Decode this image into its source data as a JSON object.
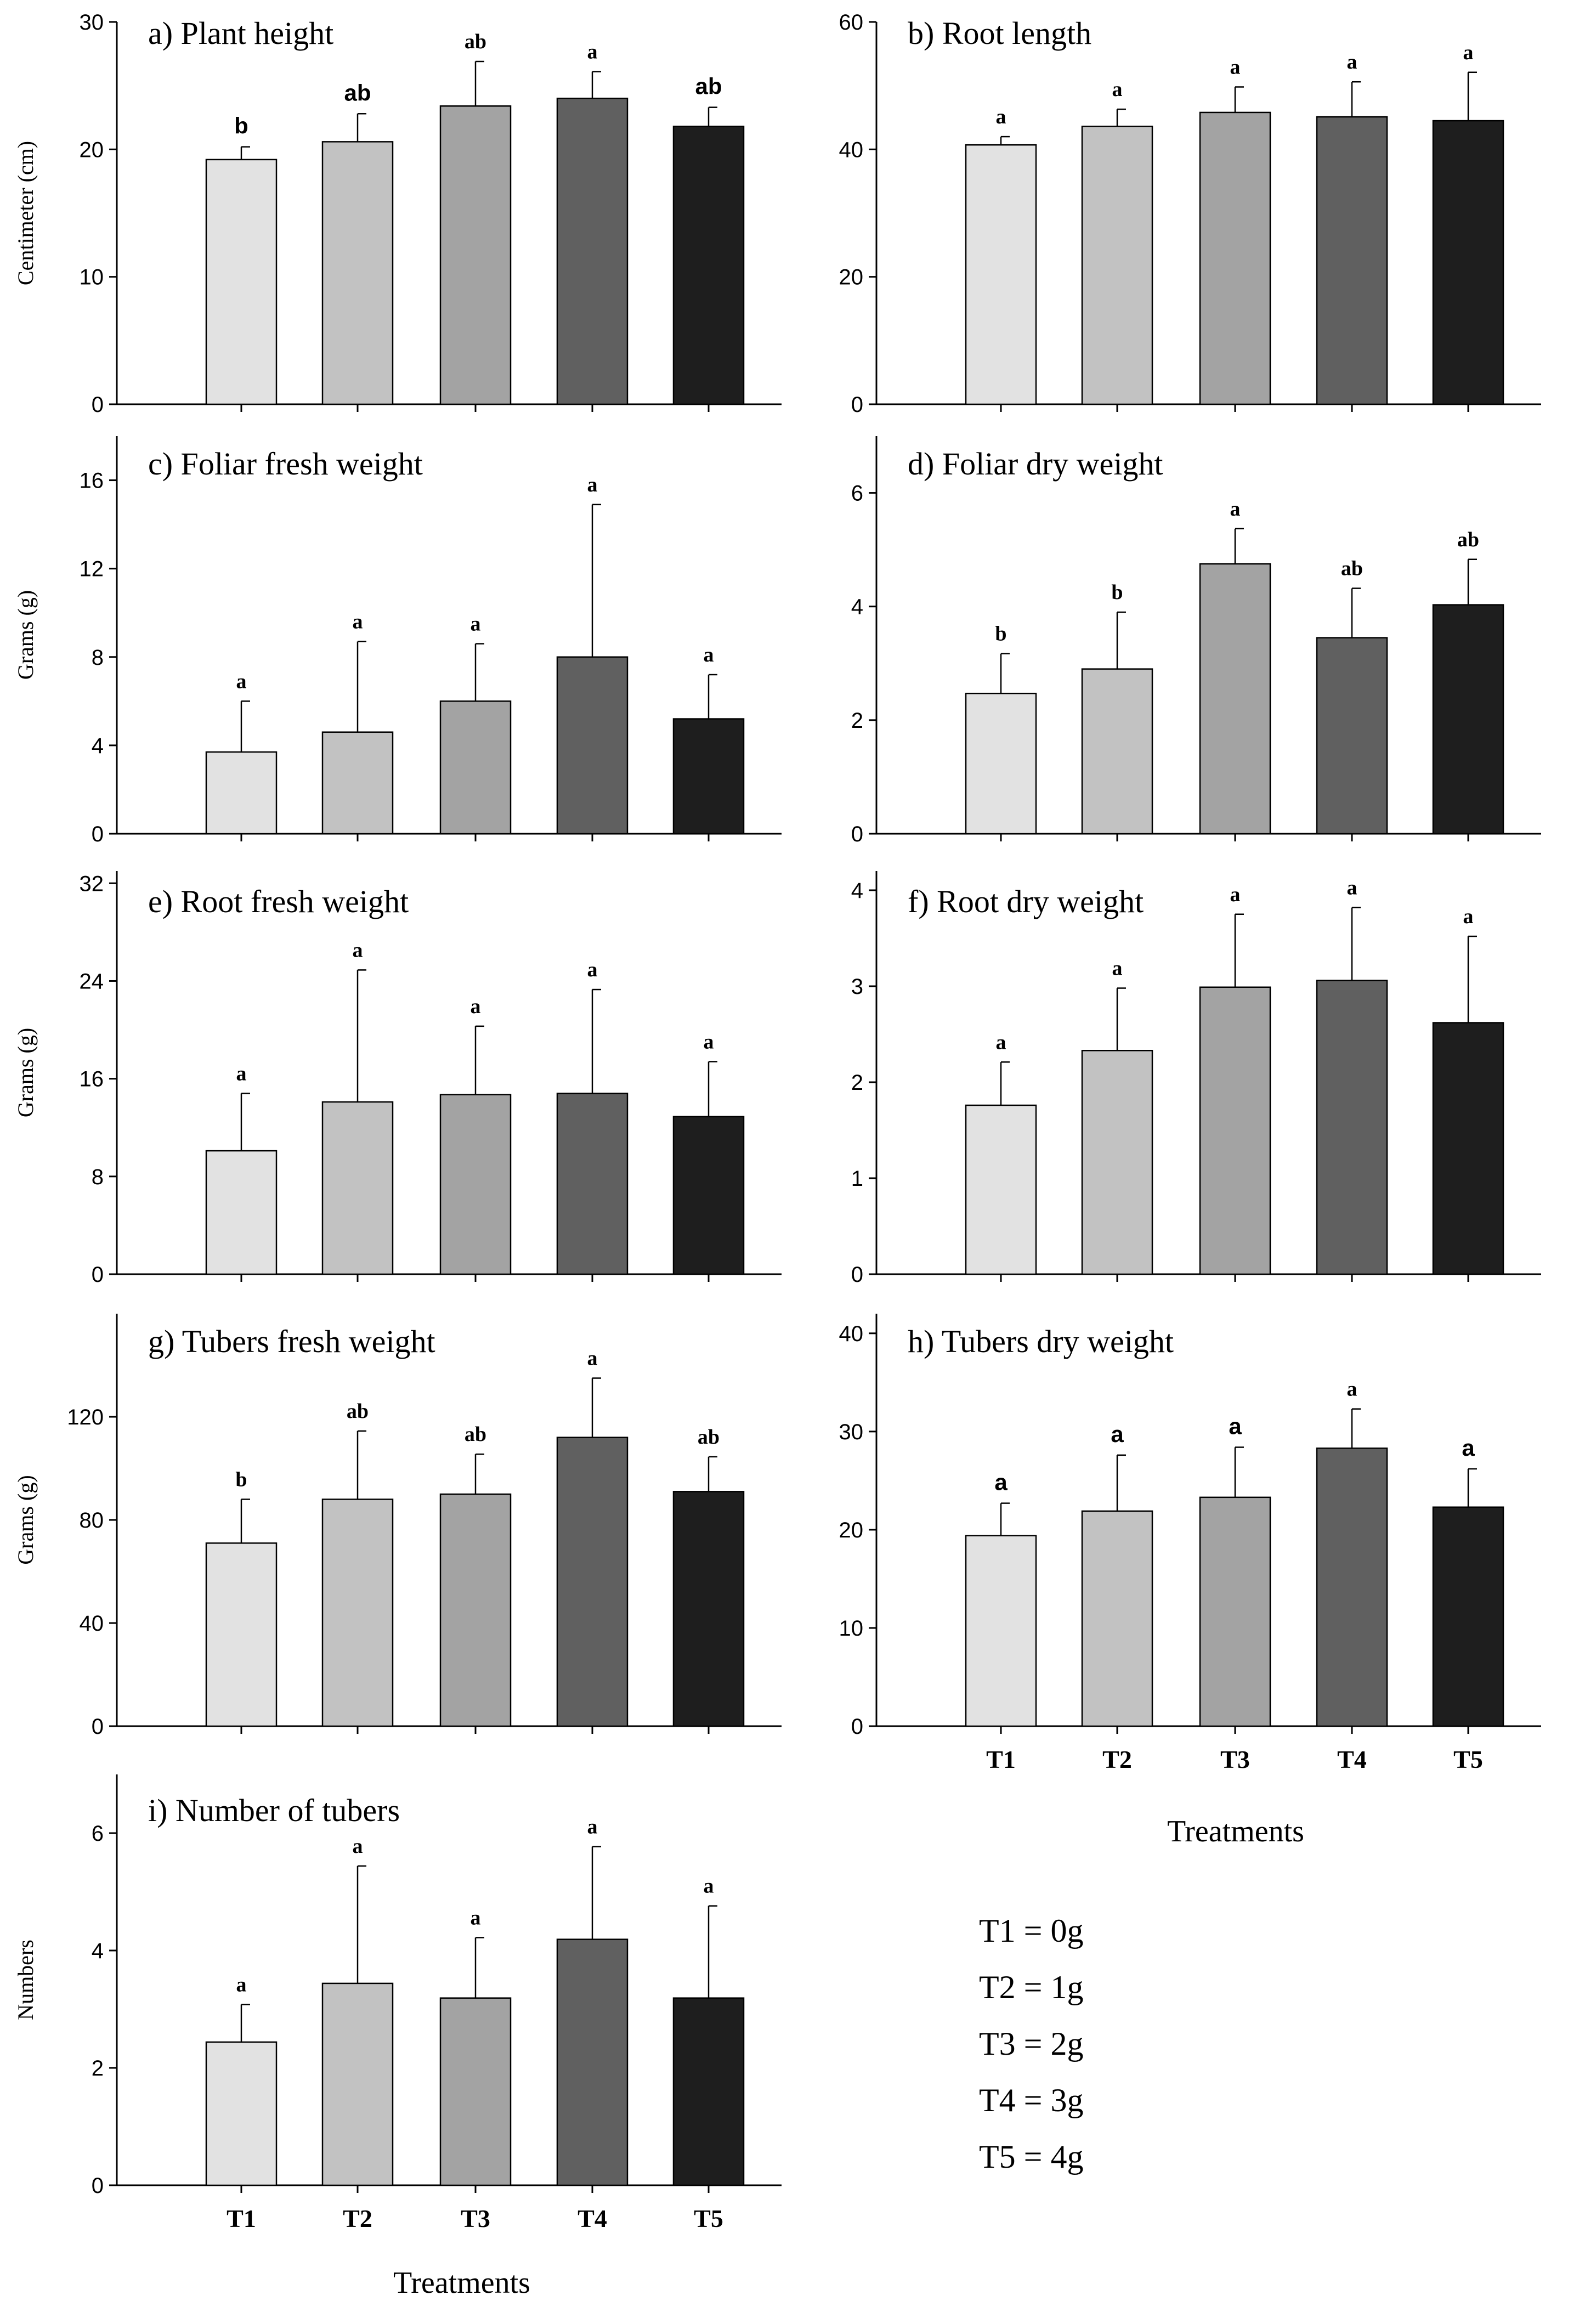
{
  "categories": [
    "T1",
    "T2",
    "T3",
    "T4",
    "T5"
  ],
  "bar_colors": [
    "#e2e2e2",
    "#c2c2c2",
    "#a3a3a3",
    "#606060",
    "#1e1e1e"
  ],
  "xlabel": "Treatments",
  "legend": [
    "T1 = 0g",
    "T2 = 1g",
    "T3 = 2g",
    "T4 = 3g",
    "T5 = 4g"
  ],
  "chart_data": [
    {
      "id": "a",
      "type": "bar",
      "title": "a) Plant height",
      "ylabel": "Centimeter (cm)",
      "ylim": [
        0,
        30
      ],
      "yticks": [
        0,
        10,
        20,
        30
      ],
      "categories": [
        "T1",
        "T2",
        "T3",
        "T4",
        "T5"
      ],
      "values": [
        19.2,
        20.6,
        23.4,
        24.0,
        21.8
      ],
      "errors": [
        1.0,
        2.2,
        3.5,
        2.1,
        1.5
      ],
      "significance": [
        "b",
        "ab",
        "ab",
        "a",
        "ab"
      ],
      "sig_style": [
        "sans",
        "sans",
        "serif",
        "serif",
        "sans"
      ]
    },
    {
      "id": "b",
      "type": "bar",
      "title": "b) Root length",
      "ylabel": "",
      "ylim": [
        0,
        60
      ],
      "yticks": [
        0,
        20,
        40,
        60
      ],
      "categories": [
        "T1",
        "T2",
        "T3",
        "T4",
        "T5"
      ],
      "values": [
        40.7,
        43.6,
        45.8,
        45.1,
        44.5
      ],
      "errors": [
        1.3,
        2.7,
        4.0,
        5.5,
        7.6
      ],
      "significance": [
        "a",
        "a",
        "a",
        "a",
        "a"
      ],
      "sig_style": [
        "serif",
        "serif",
        "serif",
        "serif",
        "serif"
      ]
    },
    {
      "id": "c",
      "type": "bar",
      "title": "c) Foliar fresh weight",
      "ylabel": "Grams (g)",
      "ylim": [
        0,
        18
      ],
      "yticks": [
        0,
        4,
        8,
        12,
        16
      ],
      "categories": [
        "T1",
        "T2",
        "T3",
        "T4",
        "T5"
      ],
      "values": [
        3.7,
        4.6,
        6.0,
        8.0,
        5.2
      ],
      "errors": [
        2.3,
        4.1,
        2.6,
        6.9,
        2.0
      ],
      "significance": [
        "a",
        "a",
        "a",
        "a",
        "a"
      ],
      "sig_style": [
        "serif",
        "serif",
        "serif",
        "serif",
        "serif"
      ]
    },
    {
      "id": "d",
      "type": "bar",
      "title": "d) Foliar dry weight",
      "ylabel": "",
      "ylim": [
        0,
        7
      ],
      "yticks": [
        0,
        2,
        4,
        6
      ],
      "categories": [
        "T1",
        "T2",
        "T3",
        "T4",
        "T5"
      ],
      "values": [
        2.47,
        2.9,
        4.75,
        3.45,
        4.03
      ],
      "errors": [
        0.7,
        1.0,
        0.62,
        0.87,
        0.8
      ],
      "significance": [
        "b",
        "b",
        "a",
        "ab",
        "ab"
      ],
      "sig_style": [
        "serif",
        "serif",
        "serif",
        "serif",
        "serif"
      ]
    },
    {
      "id": "e",
      "type": "bar",
      "title": "e) Root fresh weight",
      "ylabel": "Grams (g)",
      "ylim": [
        0,
        33
      ],
      "yticks": [
        0,
        8,
        16,
        24,
        32
      ],
      "categories": [
        "T1",
        "T2",
        "T3",
        "T4",
        "T5"
      ],
      "values": [
        10.1,
        14.1,
        14.7,
        14.8,
        12.9
      ],
      "errors": [
        4.7,
        10.8,
        5.6,
        8.5,
        4.5
      ],
      "significance": [
        "a",
        "a",
        "a",
        "a",
        "a"
      ],
      "sig_style": [
        "serif",
        "serif",
        "serif",
        "serif",
        "serif"
      ]
    },
    {
      "id": "f",
      "type": "bar",
      "title": "f) Root dry weight",
      "ylabel": "",
      "ylim": [
        0,
        4.2
      ],
      "yticks": [
        0,
        1,
        2,
        3,
        4
      ],
      "categories": [
        "T1",
        "T2",
        "T3",
        "T4",
        "T5"
      ],
      "values": [
        1.76,
        2.33,
        2.99,
        3.06,
        2.62
      ],
      "errors": [
        0.45,
        0.65,
        0.76,
        0.76,
        0.9
      ],
      "significance": [
        "a",
        "a",
        "a",
        "a",
        "a"
      ],
      "sig_style": [
        "serif",
        "serif",
        "serif",
        "serif",
        "serif"
      ]
    },
    {
      "id": "g",
      "type": "bar",
      "title": "g) Tubers fresh weight",
      "ylabel": "Grams (g)",
      "ylim": [
        0,
        160
      ],
      "yticks": [
        0,
        40,
        80,
        120
      ],
      "categories": [
        "T1",
        "T2",
        "T3",
        "T4",
        "T5"
      ],
      "values": [
        71,
        88,
        90,
        112,
        91
      ],
      "errors": [
        17,
        26.5,
        15.5,
        23,
        13.5
      ],
      "significance": [
        "b",
        "ab",
        "ab",
        "a",
        "ab"
      ],
      "sig_style": [
        "serif",
        "serif",
        "serif",
        "serif",
        "serif"
      ]
    },
    {
      "id": "h",
      "type": "bar",
      "title": "h) Tubers dry weight",
      "ylabel": "",
      "ylim": [
        0,
        42
      ],
      "yticks": [
        0,
        10,
        20,
        30,
        40
      ],
      "categories": [
        "T1",
        "T2",
        "T3",
        "T4",
        "T5"
      ],
      "values": [
        19.4,
        21.9,
        23.3,
        28.3,
        22.3
      ],
      "errors": [
        3.3,
        5.7,
        5.1,
        4.0,
        3.9
      ],
      "significance": [
        "a",
        "a",
        "a",
        "a",
        "a"
      ],
      "sig_style": [
        "sans",
        "sans",
        "sans",
        "serif",
        "sans"
      ]
    },
    {
      "id": "i",
      "type": "bar",
      "title": "i) Number of tubers",
      "ylabel": "Numbers",
      "ylim": [
        0,
        7
      ],
      "yticks": [
        0,
        2,
        4,
        6
      ],
      "categories": [
        "T1",
        "T2",
        "T3",
        "T4",
        "T5"
      ],
      "values": [
        2.44,
        3.44,
        3.19,
        4.19,
        3.19
      ],
      "errors": [
        0.64,
        2.0,
        1.03,
        1.58,
        1.57
      ],
      "significance": [
        "a",
        "a",
        "a",
        "a",
        "a"
      ],
      "sig_style": [
        "serif",
        "serif",
        "serif",
        "serif",
        "serif"
      ]
    }
  ]
}
